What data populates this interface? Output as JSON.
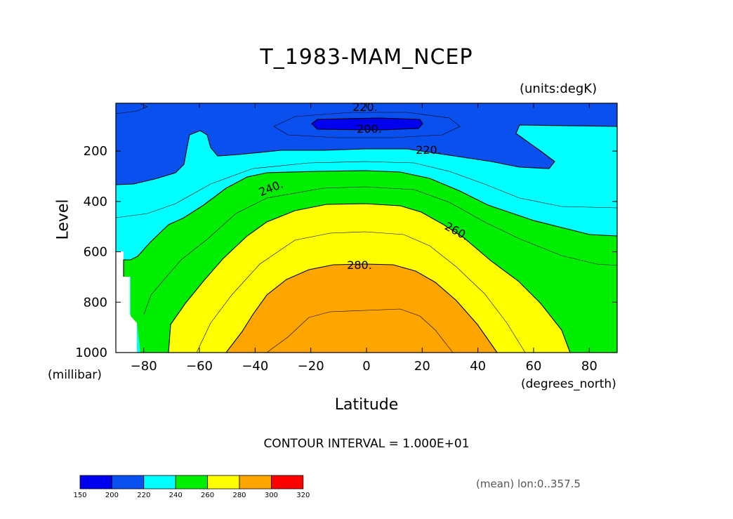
{
  "chart_data": {
    "type": "contour",
    "title": "T_1983-MAM_NCEP",
    "units": "(units:degK)",
    "xlabel": "Latitude",
    "xunits": "(degrees_north)",
    "ylabel": "Level",
    "yunits": "(millibar)",
    "xlim": [
      -90,
      90
    ],
    "ylim": [
      1000,
      10
    ],
    "xticks": [
      -80,
      -60,
      -40,
      -20,
      0,
      20,
      40,
      60,
      80
    ],
    "yticks": [
      200,
      400,
      600,
      800,
      1000
    ],
    "contour_interval_text": "CONTOUR INTERVAL = 1.000E+01",
    "contour_labels": [
      "220.",
      "200.",
      "220.",
      "240.",
      "260.",
      "280."
    ],
    "colorbar": {
      "ticks": [
        150,
        200,
        220,
        240,
        260,
        280,
        300,
        320
      ],
      "colors": [
        "#0000ee",
        "#0a50ef",
        "#00ffff",
        "#00ee00",
        "#ffff00",
        "#ffa500",
        "#ff0000"
      ]
    },
    "bands": [
      {
        "range": "<200",
        "color": "#0000ee"
      },
      {
        "range": "200-220",
        "color": "#0a50ef"
      },
      {
        "range": "220-240",
        "color": "#00ffff"
      },
      {
        "range": "240-260",
        "color": "#00ee00"
      },
      {
        "range": "260-280",
        "color": "#ffff00"
      },
      {
        "range": "280-300",
        "color": "#ffa500"
      }
    ],
    "note": "(mean) lon:0..357.5"
  }
}
